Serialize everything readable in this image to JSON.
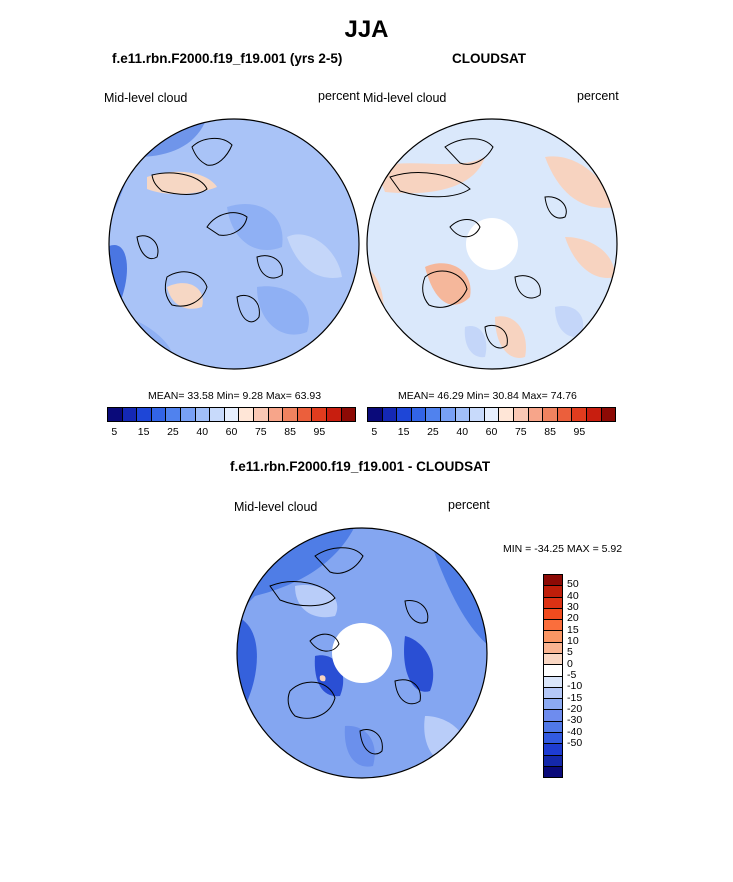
{
  "title": "JJA",
  "panels": {
    "model": {
      "title": "f.e11.rbn.F2000.f19_f19.001 (yrs 2-5)",
      "left_label": "Mid-level cloud",
      "right_label": "percent",
      "stats": "MEAN=  33.58  Min=   9.28  Max=  63.93"
    },
    "obs": {
      "title": "CLOUDSAT",
      "left_label": "Mid-level cloud",
      "right_label": "percent",
      "stats": "MEAN=  46.29  Min=  30.84  Max=  74.76"
    },
    "diff": {
      "title": "f.e11.rbn.F2000.f19_f19.001 - CLOUDSAT",
      "left_label": "Mid-level cloud",
      "right_label": "percent",
      "minmax": "MIN = -34.25 MAX =   5.92"
    }
  },
  "colorbar_abs": {
    "colors": [
      "#0a0a7a",
      "#1428b4",
      "#1e46d7",
      "#3264e6",
      "#5082ee",
      "#78a0f5",
      "#a0bef8",
      "#c8dafb",
      "#e6eefd",
      "#ffe6d7",
      "#fac8b4",
      "#f7a58a",
      "#f0825f",
      "#eb5f3c",
      "#e13c1e",
      "#c81e0f",
      "#8c0a05"
    ],
    "ticks": [
      "5",
      "15",
      "25",
      "40",
      "60",
      "75",
      "85",
      "95"
    ]
  },
  "colorbar_diff": {
    "colors": [
      "#8c0a05",
      "#be1e0a",
      "#dc3214",
      "#f04b1e",
      "#fa6e3c",
      "#fa9664",
      "#fab491",
      "#fad7c3",
      "#ffffff",
      "#dae6fb",
      "#b4c8f8",
      "#8caaf2",
      "#6e8cee",
      "#5078e8",
      "#325ae1",
      "#1e3cd2",
      "#1428aa",
      "#0a0a7a"
    ],
    "ticks": [
      "50",
      "40",
      "30",
      "20",
      "15",
      "10",
      "5",
      "0",
      "-5",
      "-10",
      "-15",
      "-20",
      "-30",
      "-40",
      "-50"
    ]
  },
  "fields": {
    "model_base": "#a9c3f7",
    "obs_base": "#dae8fb",
    "diff_base": "#84a6f1",
    "land_outline": "#000000"
  }
}
